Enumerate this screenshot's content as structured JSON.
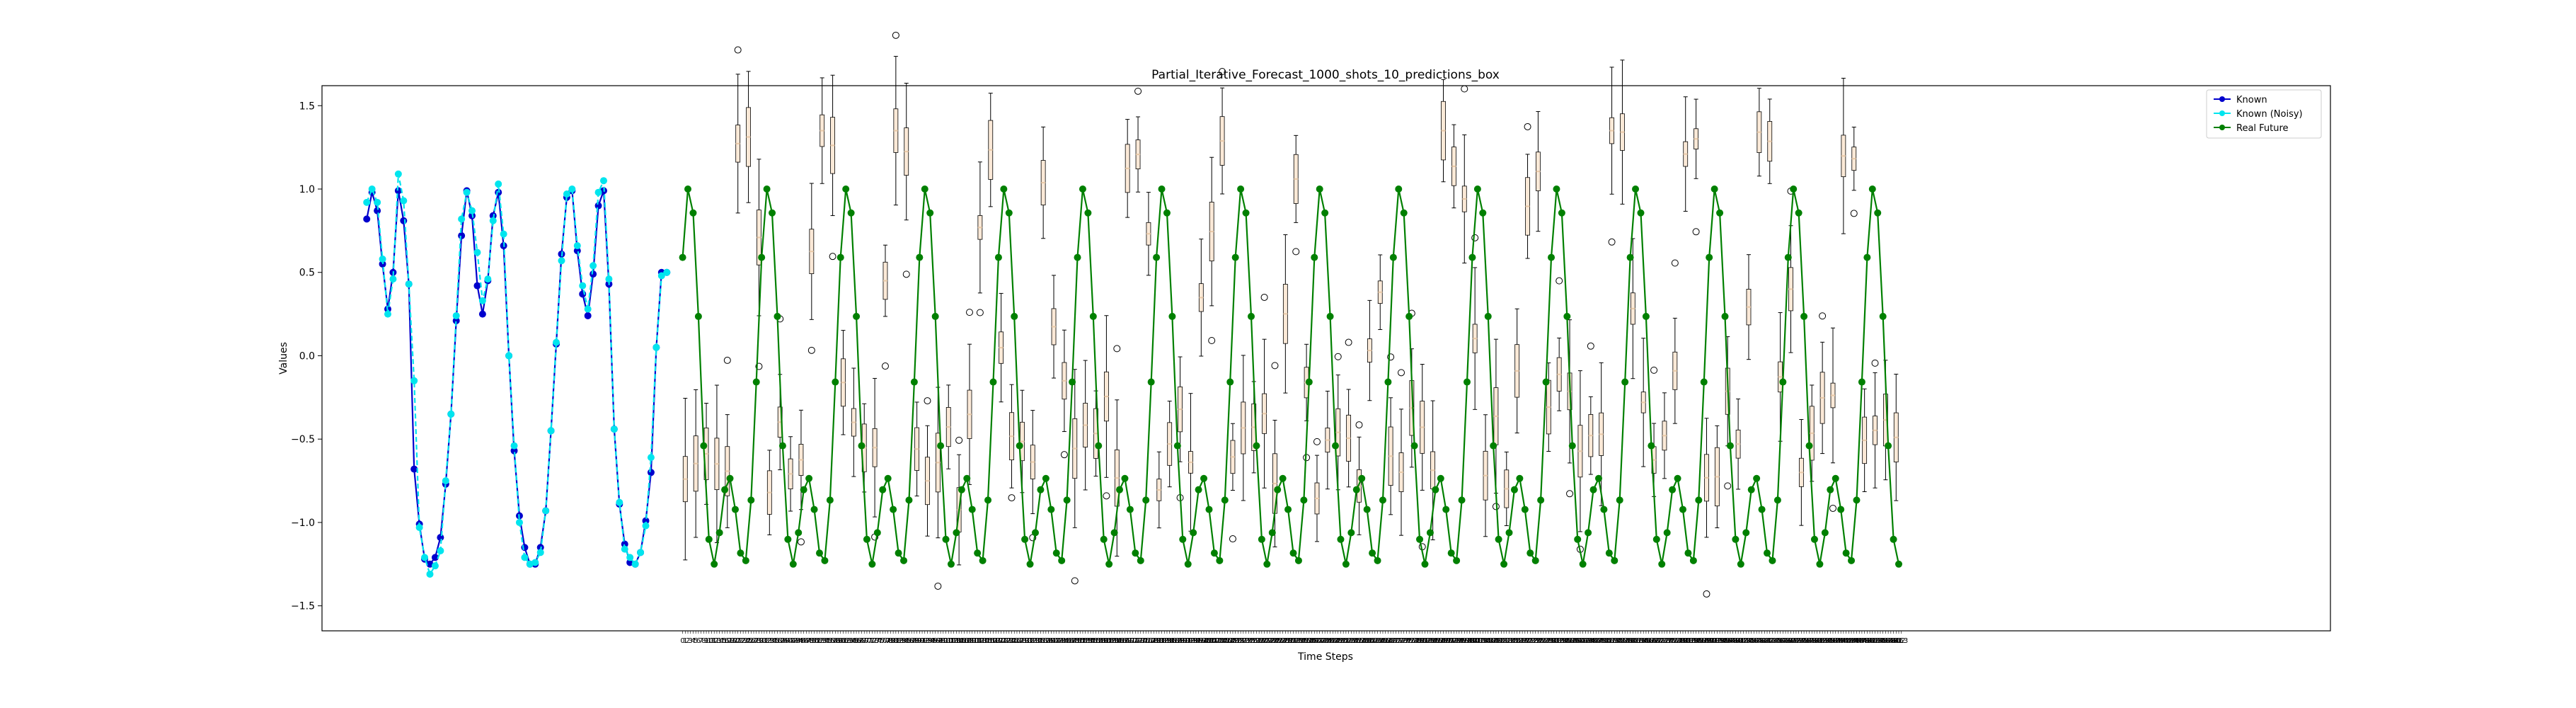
{
  "chart_data": {
    "type": "line",
    "title": "Partial_Iterative_Forecast_1000_shots_10_predictions_box",
    "xlabel": "Time Steps",
    "ylabel": "Values",
    "ylim": [
      -1.65,
      1.62
    ],
    "xlim": [
      -137,
      626
    ],
    "yticks": [
      -1.5,
      -1.0,
      -0.5,
      0.0,
      0.5,
      1.0,
      1.5
    ],
    "ytick_labels": [
      "−1.5",
      "−1.0",
      "−0.5",
      "0.0",
      "0.5",
      "1.0",
      "1.5"
    ],
    "xtick_start": 0,
    "xtick_end": 463,
    "xtick_step": 1,
    "grid": false,
    "legend_position": "top-right",
    "colors": {
      "known": "#0000cd",
      "known_noisy": "#00e5ee",
      "real_future": "#008000",
      "box_median": "#e8c9a8",
      "whisker": "#000000"
    },
    "series": [
      {
        "name": "Known",
        "x_start": -120,
        "x_step": 2,
        "values": [
          0.82,
          0.98,
          0.87,
          0.55,
          0.28,
          0.5,
          0.99,
          0.81,
          0.43,
          -0.68,
          -1.01,
          -1.22,
          -1.25,
          -1.21,
          -1.09,
          -0.77,
          -0.35,
          0.21,
          0.72,
          0.99,
          0.84,
          0.42,
          0.25,
          0.45,
          0.84,
          0.98,
          0.66,
          0.0,
          -0.57,
          -0.96,
          -1.15,
          -1.25,
          -1.25,
          -1.15,
          -0.93,
          -0.45,
          0.07,
          0.61,
          0.95,
          0.99,
          0.63,
          0.37,
          0.24,
          0.49,
          0.9,
          0.99,
          0.43,
          -0.44,
          -0.89,
          -1.13,
          -1.24,
          -1.25,
          -1.18,
          -0.99,
          -0.7,
          0.05,
          0.5,
          0.5
        ]
      },
      {
        "name": "Known (Noisy)",
        "x_start": -120,
        "x_step": 2,
        "values": [
          0.92,
          1.0,
          0.92,
          0.58,
          0.25,
          0.46,
          1.09,
          0.93,
          0.43,
          -0.15,
          -1.03,
          -1.21,
          -1.31,
          -1.26,
          -1.17,
          -0.75,
          -0.35,
          0.24,
          0.82,
          0.98,
          0.87,
          0.62,
          0.33,
          0.46,
          0.81,
          1.03,
          0.73,
          0.0,
          -0.54,
          -1.0,
          -1.21,
          -1.25,
          -1.24,
          -1.18,
          -0.93,
          -0.45,
          0.08,
          0.57,
          0.97,
          1.0,
          0.66,
          0.42,
          0.28,
          0.54,
          0.98,
          1.05,
          0.46,
          -0.44,
          -0.88,
          -1.16,
          -1.21,
          -1.25,
          -1.18,
          -1.02,
          -0.61,
          0.05,
          0.48,
          0.5
        ]
      },
      {
        "name": "Real Future",
        "x_start": 0,
        "x_step": 2,
        "period": 30,
        "amplitude_main": 1.01,
        "amplitude_second": 0.56,
        "phase_x_peak": 2.5,
        "count": 232
      }
    ],
    "boxes": {
      "x_start": 0,
      "x_step": 4,
      "count": 116
    }
  }
}
